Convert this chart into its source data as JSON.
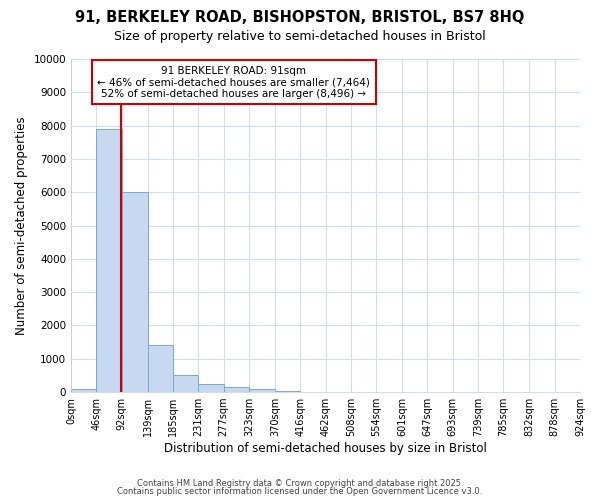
{
  "title_line1": "91, BERKELEY ROAD, BISHOPSTON, BRISTOL, BS7 8HQ",
  "title_line2": "Size of property relative to semi-detached houses in Bristol",
  "xlabel": "Distribution of semi-detached houses by size in Bristol",
  "ylabel": "Number of semi-detached properties",
  "property_size": 91,
  "pct_smaller": 46,
  "pct_larger": 52,
  "n_smaller": 7464,
  "n_larger": 8496,
  "bin_edges": [
    0,
    46,
    92,
    139,
    185,
    231,
    277,
    323,
    370,
    416,
    462,
    508,
    554,
    601,
    647,
    693,
    739,
    785,
    832,
    878,
    924
  ],
  "bin_labels": [
    "0sqm",
    "46sqm",
    "92sqm",
    "139sqm",
    "185sqm",
    "231sqm",
    "277sqm",
    "323sqm",
    "370sqm",
    "416sqm",
    "462sqm",
    "508sqm",
    "554sqm",
    "601sqm",
    "647sqm",
    "693sqm",
    "739sqm",
    "785sqm",
    "832sqm",
    "878sqm",
    "924sqm"
  ],
  "bar_heights": [
    100,
    7900,
    6000,
    1400,
    500,
    250,
    150,
    100,
    30,
    5,
    3,
    2,
    1,
    1,
    1,
    0,
    0,
    0,
    0,
    0
  ],
  "bar_color": "#c8d8f0",
  "bar_edge_color": "#7aaad0",
  "vline_color": "#cc0000",
  "vline_x": 91,
  "annotation_box_color": "#cc0000",
  "background_color": "#ffffff",
  "grid_color": "#d0dff0",
  "ylim": [
    0,
    10000
  ],
  "yticks": [
    0,
    1000,
    2000,
    3000,
    4000,
    5000,
    6000,
    7000,
    8000,
    9000,
    10000
  ],
  "footer_line1": "Contains HM Land Registry data © Crown copyright and database right 2025.",
  "footer_line2": "Contains public sector information licensed under the Open Government Licence v3.0."
}
